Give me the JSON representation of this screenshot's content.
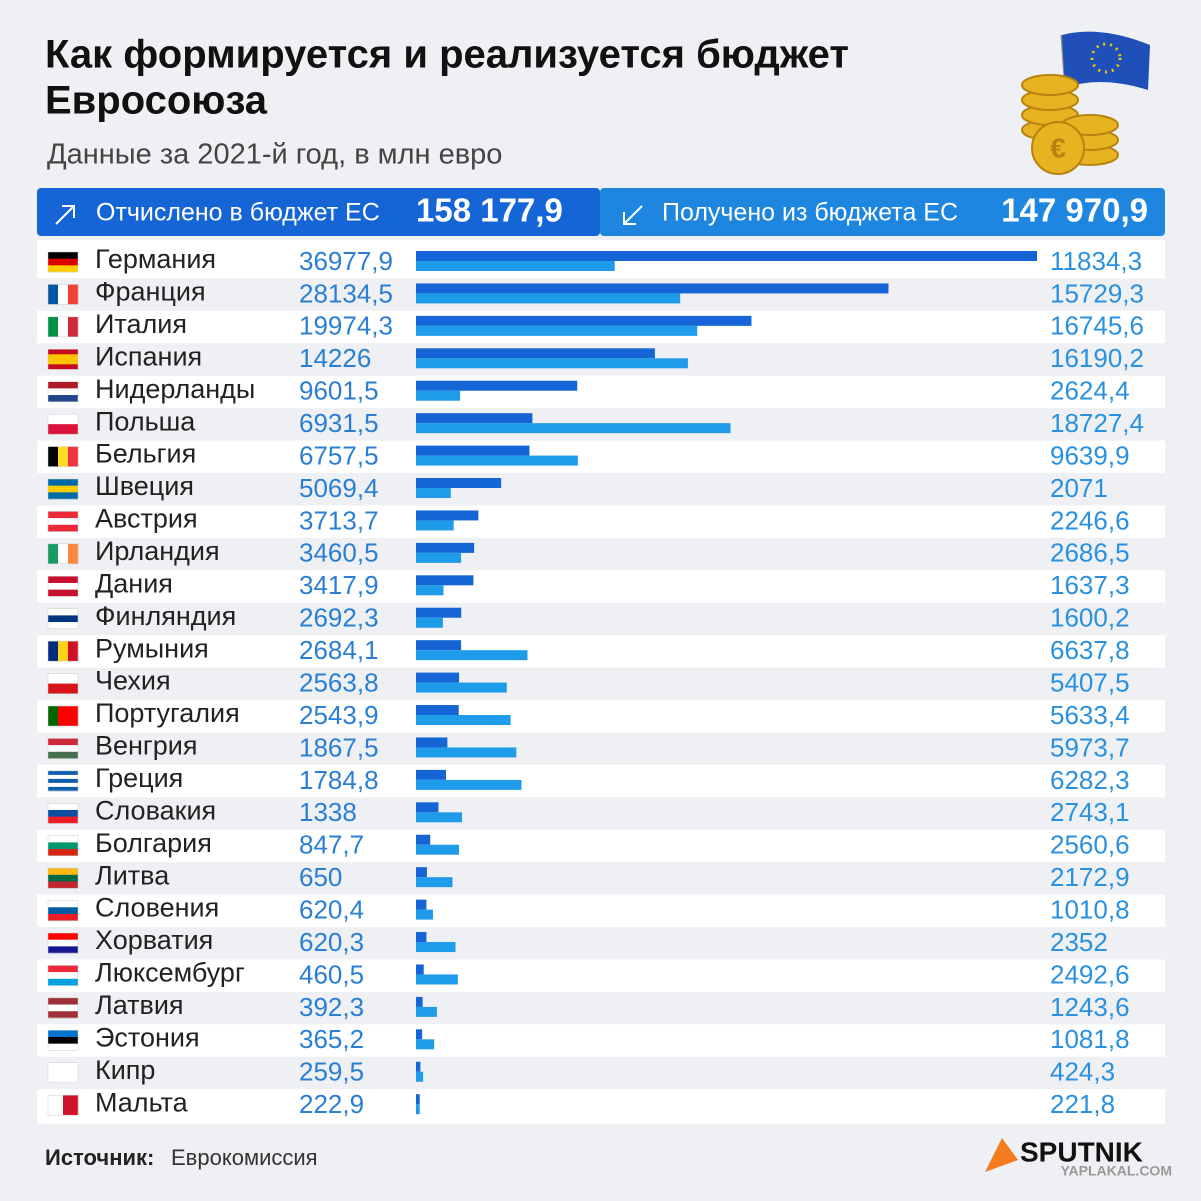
{
  "header": {
    "title_line1": "Как формируется и реализуется бюджет",
    "title_line2": "Евросоюза",
    "subtitle": "Данные за 2021-й год, в млн евро",
    "sent_label": "Отчислено в бюджет ЕС",
    "sent_total": "158 177,9",
    "received_label": "Получено из бюджета ЕС",
    "received_total": "147 970,9"
  },
  "chart_data": {
    "type": "bar",
    "orientation": "horizontal",
    "categories": [
      "Германия",
      "Франция",
      "Италия",
      "Испания",
      "Нидерланды",
      "Польша",
      "Бельгия",
      "Швеция",
      "Австрия",
      "Ирландия",
      "Дания",
      "Финляндия",
      "Румыния",
      "Чехия",
      "Португалия",
      "Венгрия",
      "Греция",
      "Словакия",
      "Болгария",
      "Литва",
      "Словения",
      "Хорватия",
      "Люксембург",
      "Латвия",
      "Эстония",
      "Кипр",
      "Мальта"
    ],
    "series": [
      {
        "name": "Отчислено в бюджет ЕС",
        "color": "#1565d6",
        "values": [
          36977.9,
          28134.5,
          19974.3,
          14226,
          9601.5,
          6931.5,
          6757.5,
          5069.4,
          3713.7,
          3460.5,
          3417.9,
          2692.3,
          2684.1,
          2563.8,
          2543.9,
          1867.5,
          1784.8,
          1338,
          847.7,
          650,
          620.4,
          620.3,
          460.5,
          392.3,
          365.2,
          259.5,
          222.9
        ],
        "value_labels": [
          "36977,9",
          "28134,5",
          "19974,3",
          "14226",
          "9601,5",
          "6931,5",
          "6757,5",
          "5069,4",
          "3713,7",
          "3460,5",
          "3417,9",
          "2692,3",
          "2684,1",
          "2563,8",
          "2543,9",
          "1867,5",
          "1784,8",
          "1338",
          "847,7",
          "650",
          "620,4",
          "620,3",
          "460,5",
          "392,3",
          "365,2",
          "259,5",
          "222,9"
        ]
      },
      {
        "name": "Получено из бюджета ЕС",
        "color": "#1f9ce9",
        "values": [
          11834.3,
          15729.3,
          16745.6,
          16190.2,
          2624.4,
          18727.4,
          9639.9,
          2071,
          2246.6,
          2686.5,
          1637.3,
          1600.2,
          6637.8,
          5407.5,
          5633.4,
          5973.7,
          6282.3,
          2743.1,
          2560.6,
          2172.9,
          1010.8,
          2352,
          2492.6,
          1243.6,
          1081.8,
          424.3,
          221.8
        ],
        "value_labels": [
          "11834,3",
          "15729,3",
          "16745,6",
          "16190,2",
          "2624,4",
          "18727,4",
          "9639,9",
          "2071",
          "2246,6",
          "2686,5",
          "1637,3",
          "1600,2",
          "6637,8",
          "5407,5",
          "5633,4",
          "5973,7",
          "6282,3",
          "2743,1",
          "2560,6",
          "2172,9",
          "1010,8",
          "2352",
          "2492,6",
          "1243,6",
          "1081,8",
          "424,3",
          "221,8"
        ]
      }
    ]
  },
  "footer": {
    "source_label": "Источник:",
    "source": "Еврокомиссия",
    "logo": "SPUTNIK",
    "watermark": "YAPLAKAL.COM"
  }
}
